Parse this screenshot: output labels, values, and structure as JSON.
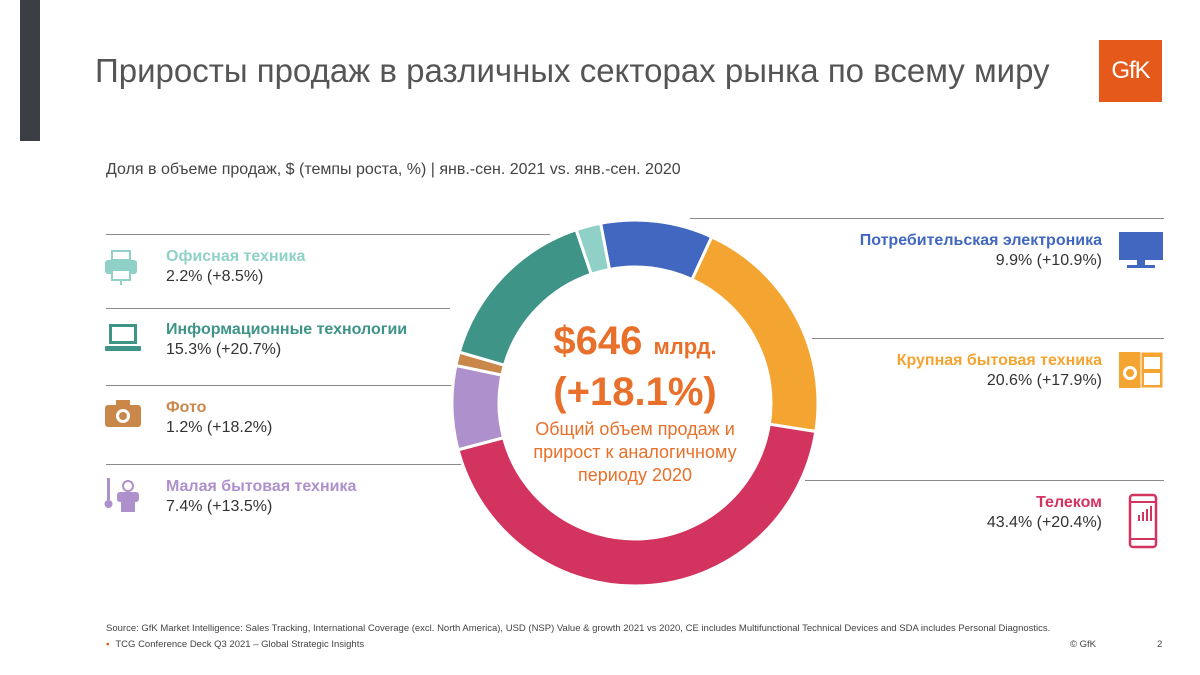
{
  "title": "Приросты продаж в различных секторах рынка по всему миру",
  "subtitle": "Доля в объеме продаж, $ (темпы роста, %) | янв.-сен. 2021 vs. янв.-сен. 2020",
  "logo_text": "GfK",
  "brand_color": "#e55a1b",
  "center": {
    "total": "$646",
    "total_unit": "млрд.",
    "growth": "(+18.1%)",
    "description_lines": [
      "Общий объем продаж и",
      "прирост к аналогичному",
      "периоду 2020"
    ]
  },
  "segments": [
    {
      "name": "Потребительская электроника",
      "value_label": "9.9% (+10.9%)",
      "color": "#4267c0",
      "icon": "tv-icon"
    },
    {
      "name": "Крупная бытовая техника",
      "value_label": "20.6% (+17.9%)",
      "color": "#f4a430",
      "icon": "washing-machine-icon"
    },
    {
      "name": "Телеком",
      "value_label": "43.4% (+20.4%)",
      "color": "#d3335f",
      "icon": "smartphone-icon"
    },
    {
      "name": "Малая бытовая техника",
      "value_label": "7.4% (+13.5%)",
      "color": "#ae90cd",
      "icon": "kitchen-appliance-icon"
    },
    {
      "name": "Фото",
      "value_label": "1.2% (+18.2%)",
      "color": "#c9884a",
      "icon": "camera-icon"
    },
    {
      "name": "Информационные технологии",
      "value_label": "15.3% (+20.7%)",
      "color": "#3d9487",
      "icon": "laptop-icon"
    },
    {
      "name": "Офисная техника",
      "value_label": "2.2% (+8.5%)",
      "color": "#8fd0c7",
      "icon": "printer-icon"
    }
  ],
  "chart_data": {
    "type": "pie",
    "categories": [
      "Потребительская электроника",
      "Крупная бытовая техника",
      "Телеком",
      "Малая бытовая техника",
      "Фото",
      "Информационные технологии",
      "Офисная техника"
    ],
    "values": [
      9.9,
      20.6,
      43.4,
      7.4,
      1.2,
      15.3,
      2.2
    ],
    "growth": [
      10.9,
      17.9,
      20.4,
      13.5,
      18.2,
      20.7,
      8.5
    ],
    "colors": [
      "#4267c0",
      "#f4a430",
      "#d3335f",
      "#ae90cd",
      "#c9884a",
      "#3d9487",
      "#8fd0c7"
    ],
    "title": "Приросты продаж в различных секторах рынка по всему миру"
  },
  "source": "Source: GfK Market Intelligence: Sales Tracking, International Coverage (excl. North America), USD (NSP) Value & growth 2021 vs 2020, CE includes Multifunctional Technical Devices and SDA includes Personal Diagnostics.",
  "footer": "TCG Conference Deck Q3 2021 – Global Strategic Insights",
  "copyright": "© GfK",
  "page_number": "2"
}
